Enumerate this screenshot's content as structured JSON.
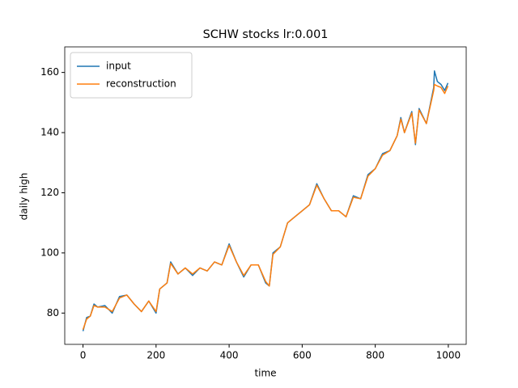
{
  "chart_data": {
    "type": "line",
    "title": "SCHW stocks lr:0.001",
    "x_label": "time",
    "y_label": "daily high",
    "x": [
      0,
      10,
      20,
      30,
      40,
      60,
      80,
      100,
      120,
      140,
      160,
      180,
      200,
      210,
      230,
      240,
      260,
      280,
      300,
      320,
      340,
      360,
      380,
      400,
      420,
      440,
      460,
      480,
      500,
      510,
      520,
      540,
      560,
      580,
      600,
      620,
      640,
      660,
      680,
      700,
      720,
      740,
      760,
      780,
      800,
      820,
      840,
      860,
      870,
      880,
      900,
      910,
      920,
      940,
      960,
      962,
      970,
      980,
      990,
      999
    ],
    "series": [
      {
        "name": "input",
        "color": "#1f77b4",
        "values": [
          74,
          78.5,
          79,
          83,
          82,
          82.5,
          80,
          85.5,
          86,
          83,
          80.5,
          84,
          80,
          88,
          90,
          97,
          93,
          95,
          92.5,
          95,
          94,
          97,
          96,
          103,
          97,
          92,
          96,
          96,
          90,
          89,
          100,
          102,
          110,
          112,
          114,
          116,
          123,
          118,
          114,
          114,
          112,
          119,
          118,
          126,
          128,
          133,
          134,
          139,
          145,
          140,
          147,
          136,
          148,
          143,
          155,
          160.5,
          157,
          156,
          154,
          156.5
        ]
      },
      {
        "name": "reconstruction",
        "color": "#ff7f0e",
        "values": [
          74.5,
          78,
          79,
          82.5,
          82,
          82,
          80.5,
          85,
          86,
          83,
          80.5,
          84,
          80.5,
          88,
          90,
          96.5,
          93,
          95,
          93,
          95,
          94,
          97,
          96,
          102.5,
          97,
          92.5,
          96,
          96,
          90.5,
          89,
          99.5,
          102,
          110,
          112,
          114,
          116,
          122.5,
          118,
          114,
          114,
          112,
          118.5,
          118,
          125.5,
          128,
          132.5,
          134,
          139,
          144.5,
          140,
          146.5,
          136.5,
          147.5,
          143,
          154,
          156,
          155.5,
          155,
          153,
          155.5
        ]
      }
    ],
    "xlim": [
      -49.95,
      1048.95
    ],
    "ylim": [
      69.6,
      168.5
    ],
    "xticks": [
      0,
      200,
      400,
      600,
      800,
      1000
    ],
    "yticks": [
      80,
      100,
      120,
      140,
      160
    ],
    "legend": "upper left"
  }
}
